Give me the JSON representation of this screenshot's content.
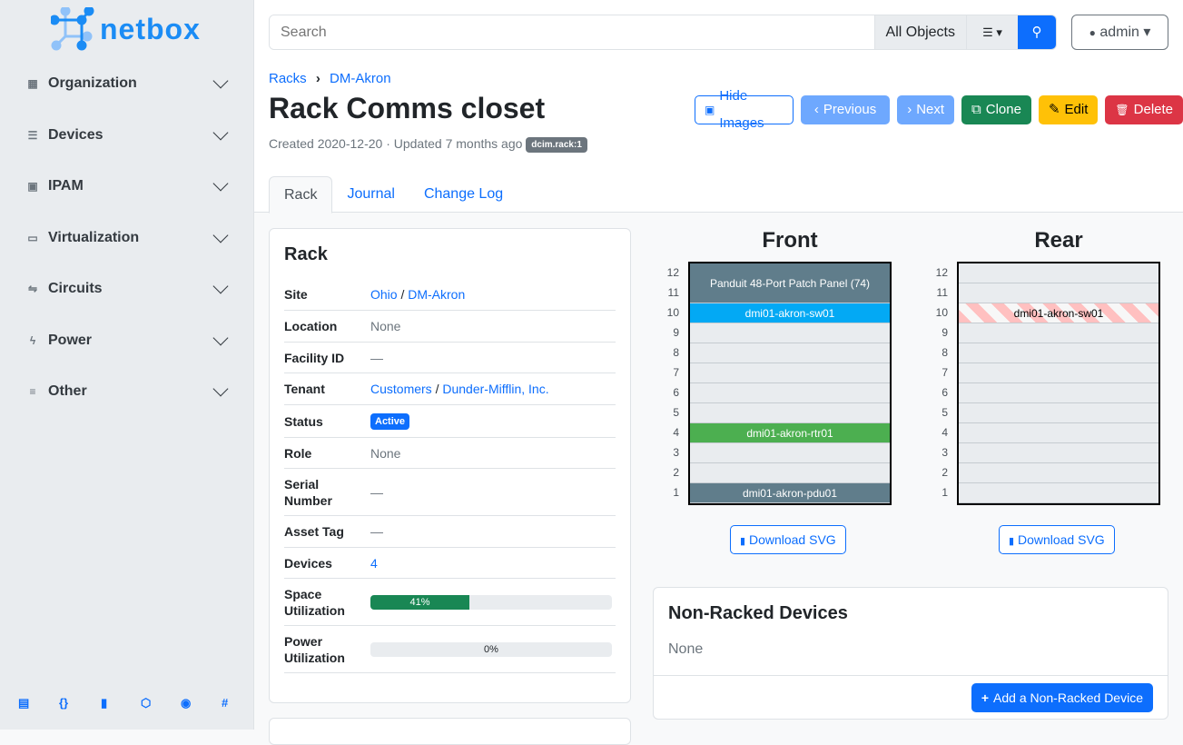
{
  "brand": "netbox",
  "nav": [
    "Organization",
    "Devices",
    "IPAM",
    "Virtualization",
    "Circuits",
    "Power",
    "Other"
  ],
  "footer_icons": [
    "docs-icon",
    "api-icon",
    "book-icon",
    "graphql-icon",
    "github-icon",
    "slack-icon"
  ],
  "search": {
    "placeholder": "Search",
    "scope": "All Objects"
  },
  "user": "admin",
  "breadcrumb": [
    "Racks",
    "DM-Akron"
  ],
  "title": "Rack Comms closet",
  "meta": {
    "text": "Created 2020-12-20 · Updated 7 months ago",
    "badge": "dcim.rack:1"
  },
  "buttons": {
    "hide_images": "Hide Images",
    "previous": "Previous",
    "next": "Next",
    "clone": "Clone",
    "edit": "Edit",
    "delete": "Delete"
  },
  "tabs": [
    "Rack",
    "Journal",
    "Change Log"
  ],
  "rack_card": {
    "title": "Rack",
    "site": {
      "label": "Site",
      "a": "Ohio",
      "b": "DM-Akron"
    },
    "location": {
      "label": "Location",
      "value": "None"
    },
    "facility": {
      "label": "Facility ID",
      "value": "—"
    },
    "tenant": {
      "label": "Tenant",
      "a": "Customers",
      "b": "Dunder-Mifflin, Inc."
    },
    "status": {
      "label": "Status",
      "value": "Active"
    },
    "role": {
      "label": "Role",
      "value": "None"
    },
    "serial": {
      "label": "Serial Number",
      "value": "—"
    },
    "asset": {
      "label": "Asset Tag",
      "value": "—"
    },
    "devices": {
      "label": "Devices",
      "value": "4"
    },
    "space": {
      "label": "Space Utilization",
      "value": "41%",
      "percent": 41
    },
    "power": {
      "label": "Power Utilization",
      "value": "0%",
      "percent": 0
    }
  },
  "elevation": {
    "front": {
      "title": "Front",
      "devices": {
        "patch": "Panduit 48-Port Patch Panel (74)",
        "sw": "dmi01-akron-sw01",
        "rtr": "dmi01-akron-rtr01",
        "pdu": "dmi01-akron-pdu01"
      }
    },
    "rear": {
      "title": "Rear",
      "devices": {
        "sw": "dmi01-akron-sw01"
      }
    },
    "units": [
      "12",
      "11",
      "10",
      "9",
      "8",
      "7",
      "6",
      "5",
      "4",
      "3",
      "2",
      "1"
    ],
    "download": "Download SVG"
  },
  "nonracked": {
    "title": "Non-Racked Devices",
    "value": "None",
    "add": "Add a Non-Racked Device"
  }
}
